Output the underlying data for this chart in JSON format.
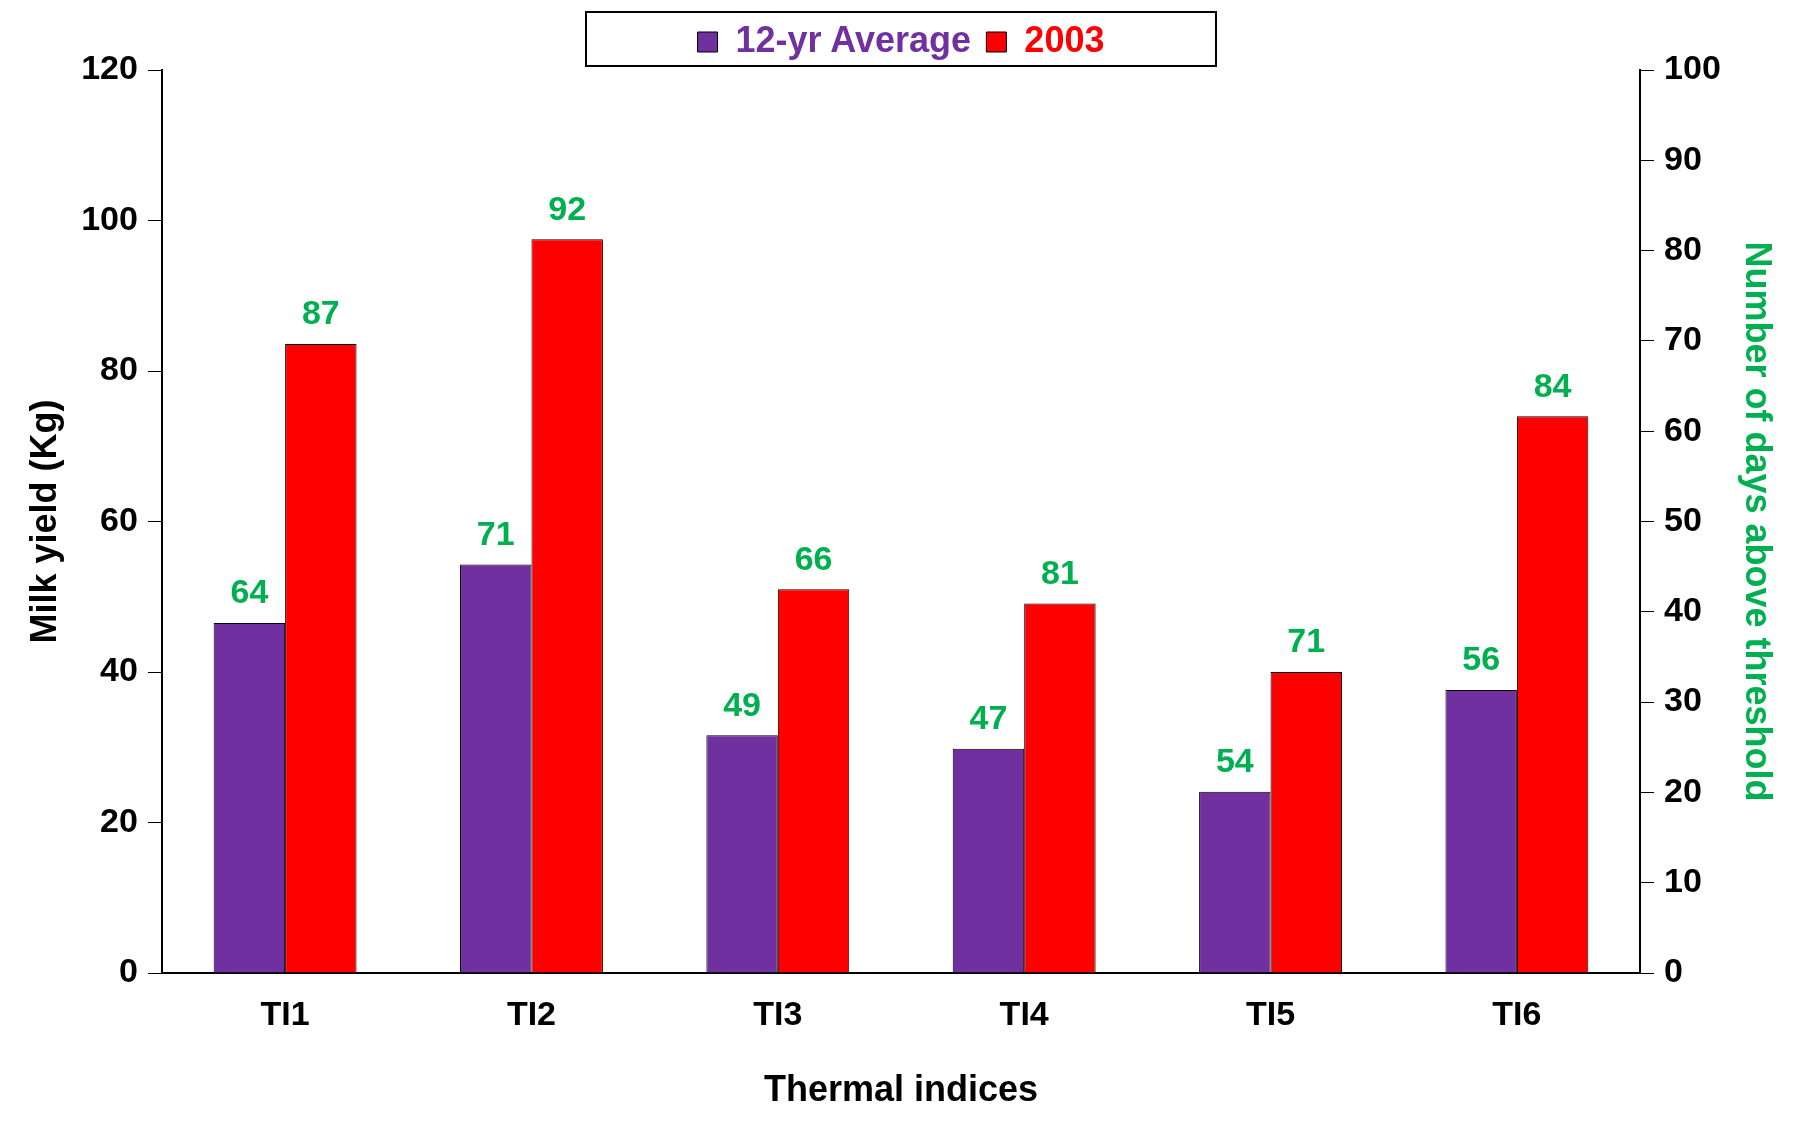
{
  "chart_data": {
    "type": "bar",
    "xlabel": "Thermal indices",
    "ylabel": "Milk yield (Kg)",
    "y2label": "Number of days above threshold",
    "categories": [
      "TI1",
      "TI2",
      "TI3",
      "TI4",
      "TI5",
      "TI6"
    ],
    "series": [
      {
        "name": "12-yr Average",
        "color": "#7030a0",
        "values": [
          46.5,
          54.3,
          31.6,
          29.8,
          24.1,
          37.6
        ]
      },
      {
        "name": "2003",
        "color": "#ff0000",
        "values": [
          83.6,
          97.5,
          51.0,
          49.1,
          40.0,
          74.0
        ]
      }
    ],
    "annotations": [
      {
        "text": "64",
        "x": "TI1",
        "y": 46.5
      },
      {
        "text": "71",
        "x": "TI2",
        "y": 54.3
      },
      {
        "text": "49",
        "x": "TI3",
        "y": 31.6
      },
      {
        "text": "47",
        "x": "TI4",
        "y": 29.8
      },
      {
        "text": "54",
        "x": "TI5",
        "y": 24.1
      },
      {
        "text": "56",
        "x": "TI6",
        "y": 37.6
      },
      {
        "text": "87",
        "x": "TI1",
        "y": 83.6
      },
      {
        "text": "92",
        "x": "TI2",
        "y": 97.5
      },
      {
        "text": "66",
        "x": "TI3",
        "y": 51.0
      },
      {
        "text": "81",
        "x": "TI4",
        "y": 49.1
      },
      {
        "text": "71",
        "x": "TI5",
        "y": 40.0
      },
      {
        "text": "84",
        "x": "TI6",
        "y": 74.0
      }
    ],
    "ylim": [
      0,
      120
    ],
    "yticks": [
      0,
      20,
      40,
      60,
      80,
      100,
      120
    ],
    "y2lim": [
      0,
      100
    ],
    "y2ticks": [
      0,
      10,
      20,
      30,
      40,
      50,
      60,
      70,
      80,
      90,
      100
    ],
    "grid": false,
    "legend": "top"
  }
}
